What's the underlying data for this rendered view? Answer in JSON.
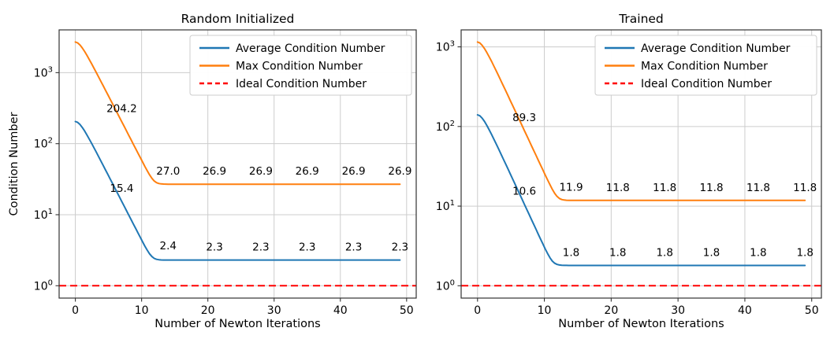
{
  "figure": {
    "background": "#ffffff"
  },
  "chart_data": [
    {
      "type": "line",
      "title": "Random Initialized",
      "xlabel": "Number of Newton Iterations",
      "ylabel": "Condition Number",
      "yscale": "log",
      "grid": true,
      "xlim": [
        -2.45,
        51.45
      ],
      "ylim": [
        0.67,
        4000
      ],
      "x_ticks": [
        0,
        10,
        20,
        30,
        40,
        50
      ],
      "x_tick_labels": [
        "0",
        "10",
        "20",
        "30",
        "40",
        "50"
      ],
      "y_ticks": [
        {
          "value": 1,
          "exponent": "0"
        },
        {
          "value": 10,
          "exponent": "1"
        },
        {
          "value": 100,
          "exponent": "2"
        },
        {
          "value": 1000,
          "exponent": "3"
        }
      ],
      "legend": {
        "position": "upper right"
      },
      "series": [
        {
          "name": "Average Condition Number",
          "color": "#1f77b4",
          "dash": "solid",
          "model": {
            "start": 205,
            "value_at_x7": 15.4,
            "plateau": 2.3,
            "x_start": 0,
            "x_end": 49
          }
        },
        {
          "name": "Max Condition Number",
          "color": "#ff7f0e",
          "dash": "solid",
          "model": {
            "start": 2700,
            "value_at_x7": 204.2,
            "plateau": 26.9,
            "x_start": 0,
            "x_end": 49
          }
        },
        {
          "name": "Ideal Condition Number",
          "color": "#ff0000",
          "dash": "dashed",
          "constant": 1.0
        }
      ],
      "annotations": [
        {
          "series": "Max Condition Number",
          "points": [
            {
              "x": 7,
              "label": "204.2"
            },
            {
              "x": 14,
              "label": "27.0"
            },
            {
              "x": 21,
              "label": "26.9"
            },
            {
              "x": 28,
              "label": "26.9"
            },
            {
              "x": 35,
              "label": "26.9"
            },
            {
              "x": 42,
              "label": "26.9"
            },
            {
              "x": 49,
              "label": "26.9"
            }
          ]
        },
        {
          "series": "Average Condition Number",
          "points": [
            {
              "x": 7,
              "label": "15.4"
            },
            {
              "x": 14,
              "label": "2.4"
            },
            {
              "x": 21,
              "label": "2.3"
            },
            {
              "x": 28,
              "label": "2.3"
            },
            {
              "x": 35,
              "label": "2.3"
            },
            {
              "x": 42,
              "label": "2.3"
            },
            {
              "x": 49,
              "label": "2.3"
            }
          ]
        }
      ]
    },
    {
      "type": "line",
      "title": "Trained",
      "xlabel": "Number of Newton Iterations",
      "ylabel": "",
      "yscale": "log",
      "grid": true,
      "xlim": [
        -2.45,
        51.45
      ],
      "ylim": [
        0.7,
        1633
      ],
      "x_ticks": [
        0,
        10,
        20,
        30,
        40,
        50
      ],
      "x_tick_labels": [
        "0",
        "10",
        "20",
        "30",
        "40",
        "50"
      ],
      "y_ticks": [
        {
          "value": 1,
          "exponent": "0"
        },
        {
          "value": 10,
          "exponent": "1"
        },
        {
          "value": 100,
          "exponent": "2"
        },
        {
          "value": 1000,
          "exponent": "3"
        }
      ],
      "legend": {
        "position": "upper right"
      },
      "series": [
        {
          "name": "Average Condition Number",
          "color": "#1f77b4",
          "dash": "solid",
          "model": {
            "start": 140,
            "value_at_x7": 10.6,
            "plateau": 1.8,
            "x_start": 0,
            "x_end": 49
          }
        },
        {
          "name": "Max Condition Number",
          "color": "#ff7f0e",
          "dash": "solid",
          "model": {
            "start": 1150,
            "value_at_x7": 89.3,
            "plateau": 11.8,
            "x_start": 0,
            "x_end": 49
          }
        },
        {
          "name": "Ideal Condition Number",
          "color": "#ff0000",
          "dash": "dashed",
          "constant": 1.0
        }
      ],
      "annotations": [
        {
          "series": "Max Condition Number",
          "points": [
            {
              "x": 7,
              "label": "89.3"
            },
            {
              "x": 14,
              "label": "11.9"
            },
            {
              "x": 21,
              "label": "11.8"
            },
            {
              "x": 28,
              "label": "11.8"
            },
            {
              "x": 35,
              "label": "11.8"
            },
            {
              "x": 42,
              "label": "11.8"
            },
            {
              "x": 49,
              "label": "11.8"
            }
          ]
        },
        {
          "series": "Average Condition Number",
          "points": [
            {
              "x": 7,
              "label": "10.6"
            },
            {
              "x": 14,
              "label": "1.8"
            },
            {
              "x": 21,
              "label": "1.8"
            },
            {
              "x": 28,
              "label": "1.8"
            },
            {
              "x": 35,
              "label": "1.8"
            },
            {
              "x": 42,
              "label": "1.8"
            },
            {
              "x": 49,
              "label": "1.8"
            }
          ]
        }
      ]
    }
  ]
}
